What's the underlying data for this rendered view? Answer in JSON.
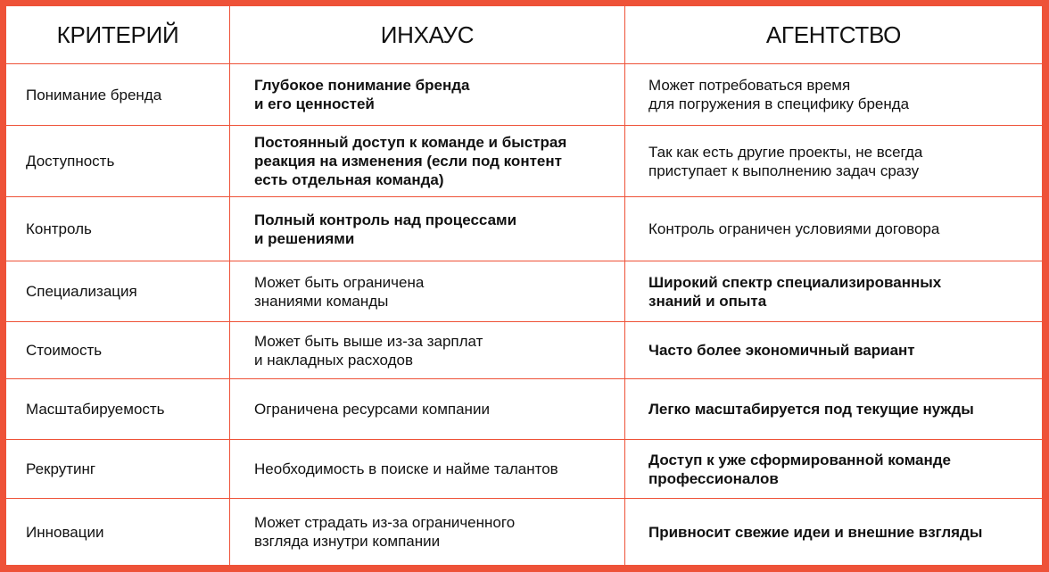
{
  "colors": {
    "accent": "#EE5238"
  },
  "headers": [
    "КРИТЕРИЙ",
    "ИНХАУС",
    "АГЕНТСТВО"
  ],
  "rows": [
    {
      "criterion": "Понимание бренда",
      "inhouse": "Глубокое понимание бренда\nи его ценностей",
      "agency": "Может потребоваться время\nдля погружения в специфику бренда",
      "highlight": "inhouse"
    },
    {
      "criterion": "Доступность",
      "inhouse": "Постоянный доступ к команде и быстрая\nреакция на изменения (если под контент\nесть отдельная команда)",
      "agency": "Так как есть другие проекты, не всегда\nприступает к выполнению задач сразу",
      "highlight": "inhouse"
    },
    {
      "criterion": "Контроль",
      "inhouse": "Полный контроль над процессами\nи решениями",
      "agency": "Контроль ограничен условиями договора",
      "highlight": "inhouse"
    },
    {
      "criterion": "Специализация",
      "inhouse": "Может быть ограничена\nзнаниями команды",
      "agency": "Широкий спектр специализированных\nзнаний и опыта",
      "highlight": "agency"
    },
    {
      "criterion": "Стоимость",
      "inhouse": "Может быть выше из-за зарплат\nи накладных расходов",
      "agency": "Часто более экономичный вариант",
      "highlight": "agency"
    },
    {
      "criterion": "Масштабируемость",
      "inhouse": "Ограничена ресурсами компании",
      "agency": "Легко масштабируется под текущие нужды",
      "highlight": "agency"
    },
    {
      "criterion": "Рекрутинг",
      "inhouse": "Необходимость в поиске и найме талантов",
      "agency": "Доступ к уже сформированной команде\nпрофессионалов",
      "highlight": "agency"
    },
    {
      "criterion": "Инновации",
      "inhouse": "Может страдать из-за ограниченного\nвзгляда изнутри компании",
      "agency": "Привносит свежие идеи и внешние взгляды",
      "highlight": "agency"
    }
  ]
}
